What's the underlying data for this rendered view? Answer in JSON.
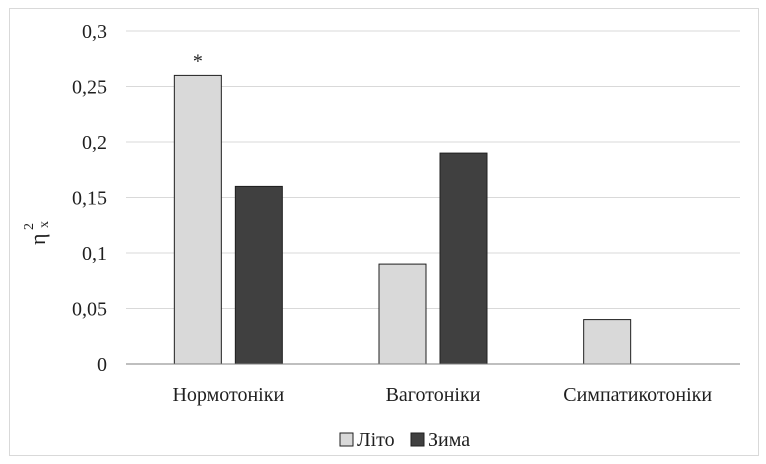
{
  "chart_data": {
    "type": "bar",
    "categories": [
      "Нормотоніки",
      "Ваготоніки",
      "Симпатикотоніки"
    ],
    "series": [
      {
        "name": "Літо",
        "values": [
          0.26,
          0.09,
          0.04
        ],
        "color": "#d9d9d9"
      },
      {
        "name": "Зима",
        "values": [
          0.16,
          0.19,
          0
        ],
        "color": "#404040"
      }
    ],
    "title": "",
    "xlabel": "",
    "ylabel": "η",
    "ylabel_superscript": "2",
    "ylabel_subscript": "x",
    "ylim": [
      0,
      0.3
    ],
    "yticks": [
      "0",
      "0,05",
      "0,1",
      "0,15",
      "0,2",
      "0,25",
      "0,3"
    ],
    "annotation": "*",
    "annotation_category": "Нормотоніки",
    "legend_position": "bottom",
    "grid": true,
    "grid_color": "#d9d9d9",
    "axis_color": "#7f7f7f"
  }
}
